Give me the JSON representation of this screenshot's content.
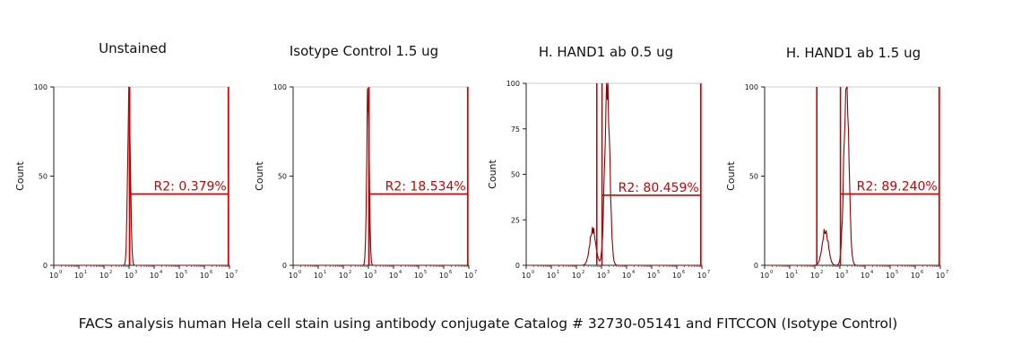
{
  "caption": "FACS analysis human Hela cell stain using antibody conjugate Catalog # 32730-05141 and FITCCON (Isotype Control)",
  "colors": {
    "histogram": "#8b0000",
    "gate": "#cc0000",
    "axis": "#222222",
    "frame": "#cccccc"
  },
  "chart_data": [
    {
      "type": "histogram",
      "title": "Unstained",
      "ylabel": "Count",
      "xscale": "log",
      "xlim": [
        1,
        10000000
      ],
      "ylim": [
        0,
        100
      ],
      "yticks": [
        0,
        50,
        100
      ],
      "xticks": [
        "10",
        "10",
        "10",
        "10",
        "10",
        "10",
        "10",
        "10"
      ],
      "gate": {
        "label": "R2:",
        "value": "0.379%",
        "from": 1050,
        "to": 9000000
      },
      "marker": 1050,
      "peaks": [
        {
          "center": 1000,
          "sigma": 0.055,
          "height": 100
        }
      ]
    },
    {
      "type": "histogram",
      "title": "Isotype Control 1.5 ug",
      "ylabel": "Count",
      "xscale": "log",
      "xlim": [
        1,
        10000000
      ],
      "ylim": [
        0,
        100
      ],
      "yticks": [
        0,
        50,
        100
      ],
      "xticks": [
        "10",
        "10",
        "10",
        "10",
        "10",
        "10",
        "10",
        "10"
      ],
      "gate": {
        "label": "R2:",
        "value": "18.534%",
        "from": 1050,
        "to": 9000000
      },
      "marker": 1050,
      "peaks": [
        {
          "center": 960,
          "sigma": 0.05,
          "height": 100
        }
      ]
    },
    {
      "type": "histogram",
      "title": "H. HAND1 ab 0.5 ug",
      "ylabel": "Count",
      "xscale": "log",
      "xlim": [
        1,
        10000000
      ],
      "ylim": [
        0,
        100
      ],
      "yticks": [
        0,
        25,
        50,
        75,
        100
      ],
      "xticks": [
        "10",
        "10",
        "10",
        "10",
        "10",
        "10",
        "10",
        "10"
      ],
      "gate": {
        "label": "R2:",
        "value": "80.459%",
        "from": 1050,
        "to": 9000000
      },
      "marker": 650,
      "peaks": [
        {
          "center": 1700,
          "sigma": 0.1,
          "height": 100
        },
        {
          "center": 450,
          "sigma": 0.12,
          "height": 20
        }
      ]
    },
    {
      "type": "histogram",
      "title": "H. HAND1 ab 1.5 ug",
      "ylabel": "Count",
      "xscale": "log",
      "xlim": [
        1,
        10000000
      ],
      "ylim": [
        0,
        100
      ],
      "yticks": [
        0,
        50,
        100
      ],
      "xticks": [
        "10",
        "10",
        "10",
        "10",
        "10",
        "10",
        "10",
        "10"
      ],
      "gate": {
        "label": "R2:",
        "value": "89.240%",
        "from": 1050,
        "to": 9000000
      },
      "marker": 120,
      "peaks": [
        {
          "center": 1800,
          "sigma": 0.1,
          "height": 100
        },
        {
          "center": 260,
          "sigma": 0.12,
          "height": 20
        }
      ]
    }
  ]
}
